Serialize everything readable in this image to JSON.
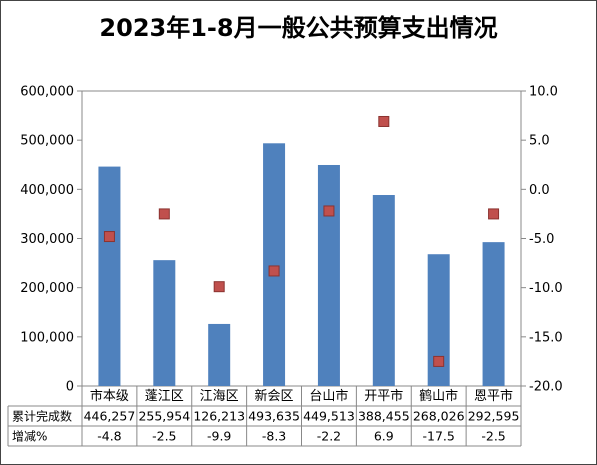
{
  "chart_data": {
    "type": "bar",
    "title": "2023年1-8月一般公共预算支出情况",
    "categories": [
      "市本级",
      "蓬江区",
      "江海区",
      "新会区",
      "台山市",
      "开平市",
      "鹤山市",
      "恩平市"
    ],
    "series": [
      {
        "name": "累计完成数",
        "type": "bar",
        "axis": "left",
        "color": "#4F81BD",
        "values": [
          446257,
          255954,
          126213,
          493635,
          449513,
          388455,
          268026,
          292595
        ]
      },
      {
        "name": "增减%",
        "type": "scatter",
        "axis": "right",
        "color": "#C0504D",
        "values": [
          -4.8,
          -2.5,
          -9.9,
          -8.3,
          -2.2,
          6.9,
          -17.5,
          -2.5
        ]
      }
    ],
    "left_axis": {
      "ylim": [
        0,
        600000
      ],
      "ticks": [
        0,
        100000,
        200000,
        300000,
        400000,
        500000,
        600000
      ],
      "tick_labels": [
        "0",
        "100,000",
        "200,000",
        "300,000",
        "400,000",
        "500,000",
        "600,000"
      ]
    },
    "right_axis": {
      "ylim": [
        -20,
        10
      ],
      "ticks": [
        -20,
        -15,
        -10,
        -5,
        0,
        5,
        10
      ],
      "tick_labels": [
        "-20.0",
        "-15.0",
        "-10.0",
        "-5.0",
        "0.0",
        "5.0",
        "10.0"
      ]
    },
    "data_table": {
      "row_headers": [
        "累计完成数",
        "增减%"
      ],
      "rows": [
        [
          "446,257",
          "255,954",
          "126,213",
          "493,635",
          "449,513",
          "388,455",
          "268,026",
          "292,595"
        ],
        [
          "-4.8",
          "-2.5",
          "-9.9",
          "-8.3",
          "-2.2",
          "6.9",
          "-17.5",
          "-2.5"
        ]
      ]
    },
    "grid": false,
    "legend": "none"
  }
}
